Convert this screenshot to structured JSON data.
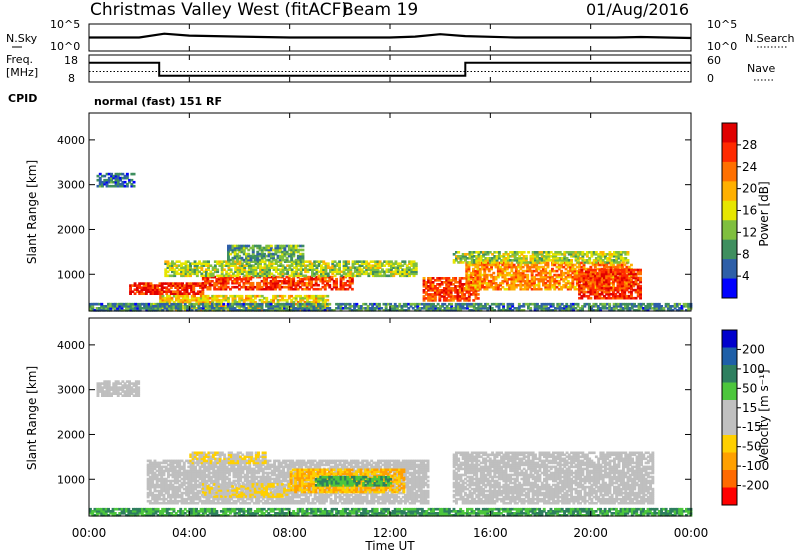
{
  "header": {
    "station": "Christmas Valley West (fitACF)",
    "beam": "Beam 19",
    "date": "01/Aug/2016"
  },
  "strip": {
    "nsky_label": "N.Sky",
    "nsearch_label": "N.Search",
    "noise_ticks": [
      "10^5",
      "10^0"
    ],
    "freq_label_line1": "Freq.",
    "freq_label_line2": "[MHz]",
    "freq_ticks": [
      "18",
      "8"
    ],
    "nave_label": "Nave",
    "nave_ticks": [
      "60",
      "0"
    ],
    "cpid_label": "CPID",
    "cpid_text": "normal (fast) 151 RF"
  },
  "colors": {
    "power": [
      "#0000ff",
      "#2e5fa8",
      "#3f8f5f",
      "#7fbf3f",
      "#e6e600",
      "#ffb000",
      "#ff7000",
      "#ff2a00",
      "#e00000"
    ],
    "velocity": [
      "#ff0000",
      "#ff6a00",
      "#ffa000",
      "#ffd000",
      "#c0c0c0",
      "#c0c0c0",
      "#4cc63c",
      "#2e7f5f",
      "#1e5fa8",
      "#0000cc"
    ],
    "ground": "#bfbfbf"
  },
  "chart_data": [
    {
      "type": "line",
      "name": "noise-strip",
      "series": [
        {
          "name": "N.Sky",
          "x": [
            0,
            2,
            3,
            4,
            6,
            8,
            10,
            12,
            13,
            14,
            15,
            17,
            19,
            21,
            22,
            23,
            24
          ],
          "values": [
            2.6,
            2.6,
            3.4,
            3.0,
            2.8,
            2.6,
            2.6,
            2.6,
            2.8,
            3.3,
            2.9,
            2.6,
            2.6,
            2.6,
            2.7,
            2.6,
            2.5
          ]
        },
        {
          "name": "N.Search"
        },
        {
          "name": "Freq.",
          "x": [
            0,
            2.8,
            2.8,
            15,
            15,
            24
          ],
          "values": [
            15,
            15,
            10,
            10,
            15,
            15
          ]
        },
        {
          "name": "Nave",
          "x": [
            0,
            24
          ],
          "values": [
            22,
            22
          ]
        }
      ]
    },
    {
      "type": "heatmap",
      "name": "power",
      "xlabel": "Time UT",
      "ylabel": "Slant Range [km]",
      "xlim": [
        0,
        24
      ],
      "ylim": [
        180,
        4600
      ],
      "x_ticks": [
        "00:00",
        "04:00",
        "08:00",
        "12:00",
        "16:00",
        "20:00",
        "00:00"
      ],
      "y_ticks": [
        1000,
        2000,
        3000,
        4000
      ],
      "colorbar_label": "Power [dB]",
      "colorbar_ticks": [
        4,
        8,
        12,
        16,
        20,
        24,
        28
      ],
      "colorbar_range": [
        0,
        32
      ],
      "regions": [
        {
          "t": [
            0,
            2.8
          ],
          "r": [
            180,
            330
          ],
          "level": 10
        },
        {
          "t": [
            2.8,
            9.5
          ],
          "r": [
            180,
            520
          ],
          "level": 18
        },
        {
          "t": [
            1.6,
            4.5
          ],
          "r": [
            550,
            800
          ],
          "level": 28
        },
        {
          "t": [
            4.5,
            10.5
          ],
          "r": [
            650,
            950
          ],
          "level": 26
        },
        {
          "t": [
            3.0,
            13.0
          ],
          "r": [
            950,
            1300
          ],
          "level": 14
        },
        {
          "t": [
            5.5,
            8.5
          ],
          "r": [
            1300,
            1650
          ],
          "level": 10
        },
        {
          "t": [
            0.3,
            1.8
          ],
          "r": [
            2950,
            3250
          ],
          "level": 6
        },
        {
          "t": [
            13.3,
            15.5
          ],
          "r": [
            400,
            900
          ],
          "level": 26
        },
        {
          "t": [
            15.0,
            21.6
          ],
          "r": [
            650,
            1250
          ],
          "level": 22
        },
        {
          "t": [
            14.5,
            21.5
          ],
          "r": [
            1250,
            1500
          ],
          "level": 14
        },
        {
          "t": [
            19.5,
            22.0
          ],
          "r": [
            450,
            1100
          ],
          "level": 27
        },
        {
          "t": [
            0.0,
            24.0
          ],
          "r": [
            180,
            350
          ],
          "level": 8
        }
      ]
    },
    {
      "type": "heatmap",
      "name": "velocity",
      "xlabel": "Time UT",
      "ylabel": "Slant Range [km]",
      "xlim": [
        0,
        24
      ],
      "ylim": [
        180,
        4600
      ],
      "x_ticks": [
        "00:00",
        "04:00",
        "08:00",
        "12:00",
        "16:00",
        "20:00",
        "00:00"
      ],
      "y_ticks": [
        1000,
        2000,
        3000,
        4000
      ],
      "colorbar_label": "Velocity [m s⁻¹]",
      "colorbar_ticks": [
        "200",
        "100",
        "50",
        "15",
        "-15",
        "-50",
        "-100",
        "-200"
      ],
      "regions": [
        {
          "t": [
            2.3,
            13.5
          ],
          "r": [
            450,
            1400
          ],
          "v": "ground"
        },
        {
          "t": [
            0.3,
            2.0
          ],
          "r": [
            2850,
            3200
          ],
          "v": "ground"
        },
        {
          "t": [
            14.5,
            22.5
          ],
          "r": [
            450,
            1600
          ],
          "v": "ground"
        },
        {
          "t": [
            8.0,
            12.5
          ],
          "r": [
            700,
            1200
          ],
          "v": -50
        },
        {
          "t": [
            4.5,
            8.0
          ],
          "r": [
            600,
            900
          ],
          "v": -30
        },
        {
          "t": [
            9.0,
            12.0
          ],
          "r": [
            850,
            1050
          ],
          "v": 30
        },
        {
          "t": [
            0.0,
            24.0
          ],
          "r": [
            180,
            320
          ],
          "v": 30
        },
        {
          "t": [
            4.0,
            7.0
          ],
          "r": [
            1350,
            1600
          ],
          "v": -30
        }
      ]
    }
  ]
}
